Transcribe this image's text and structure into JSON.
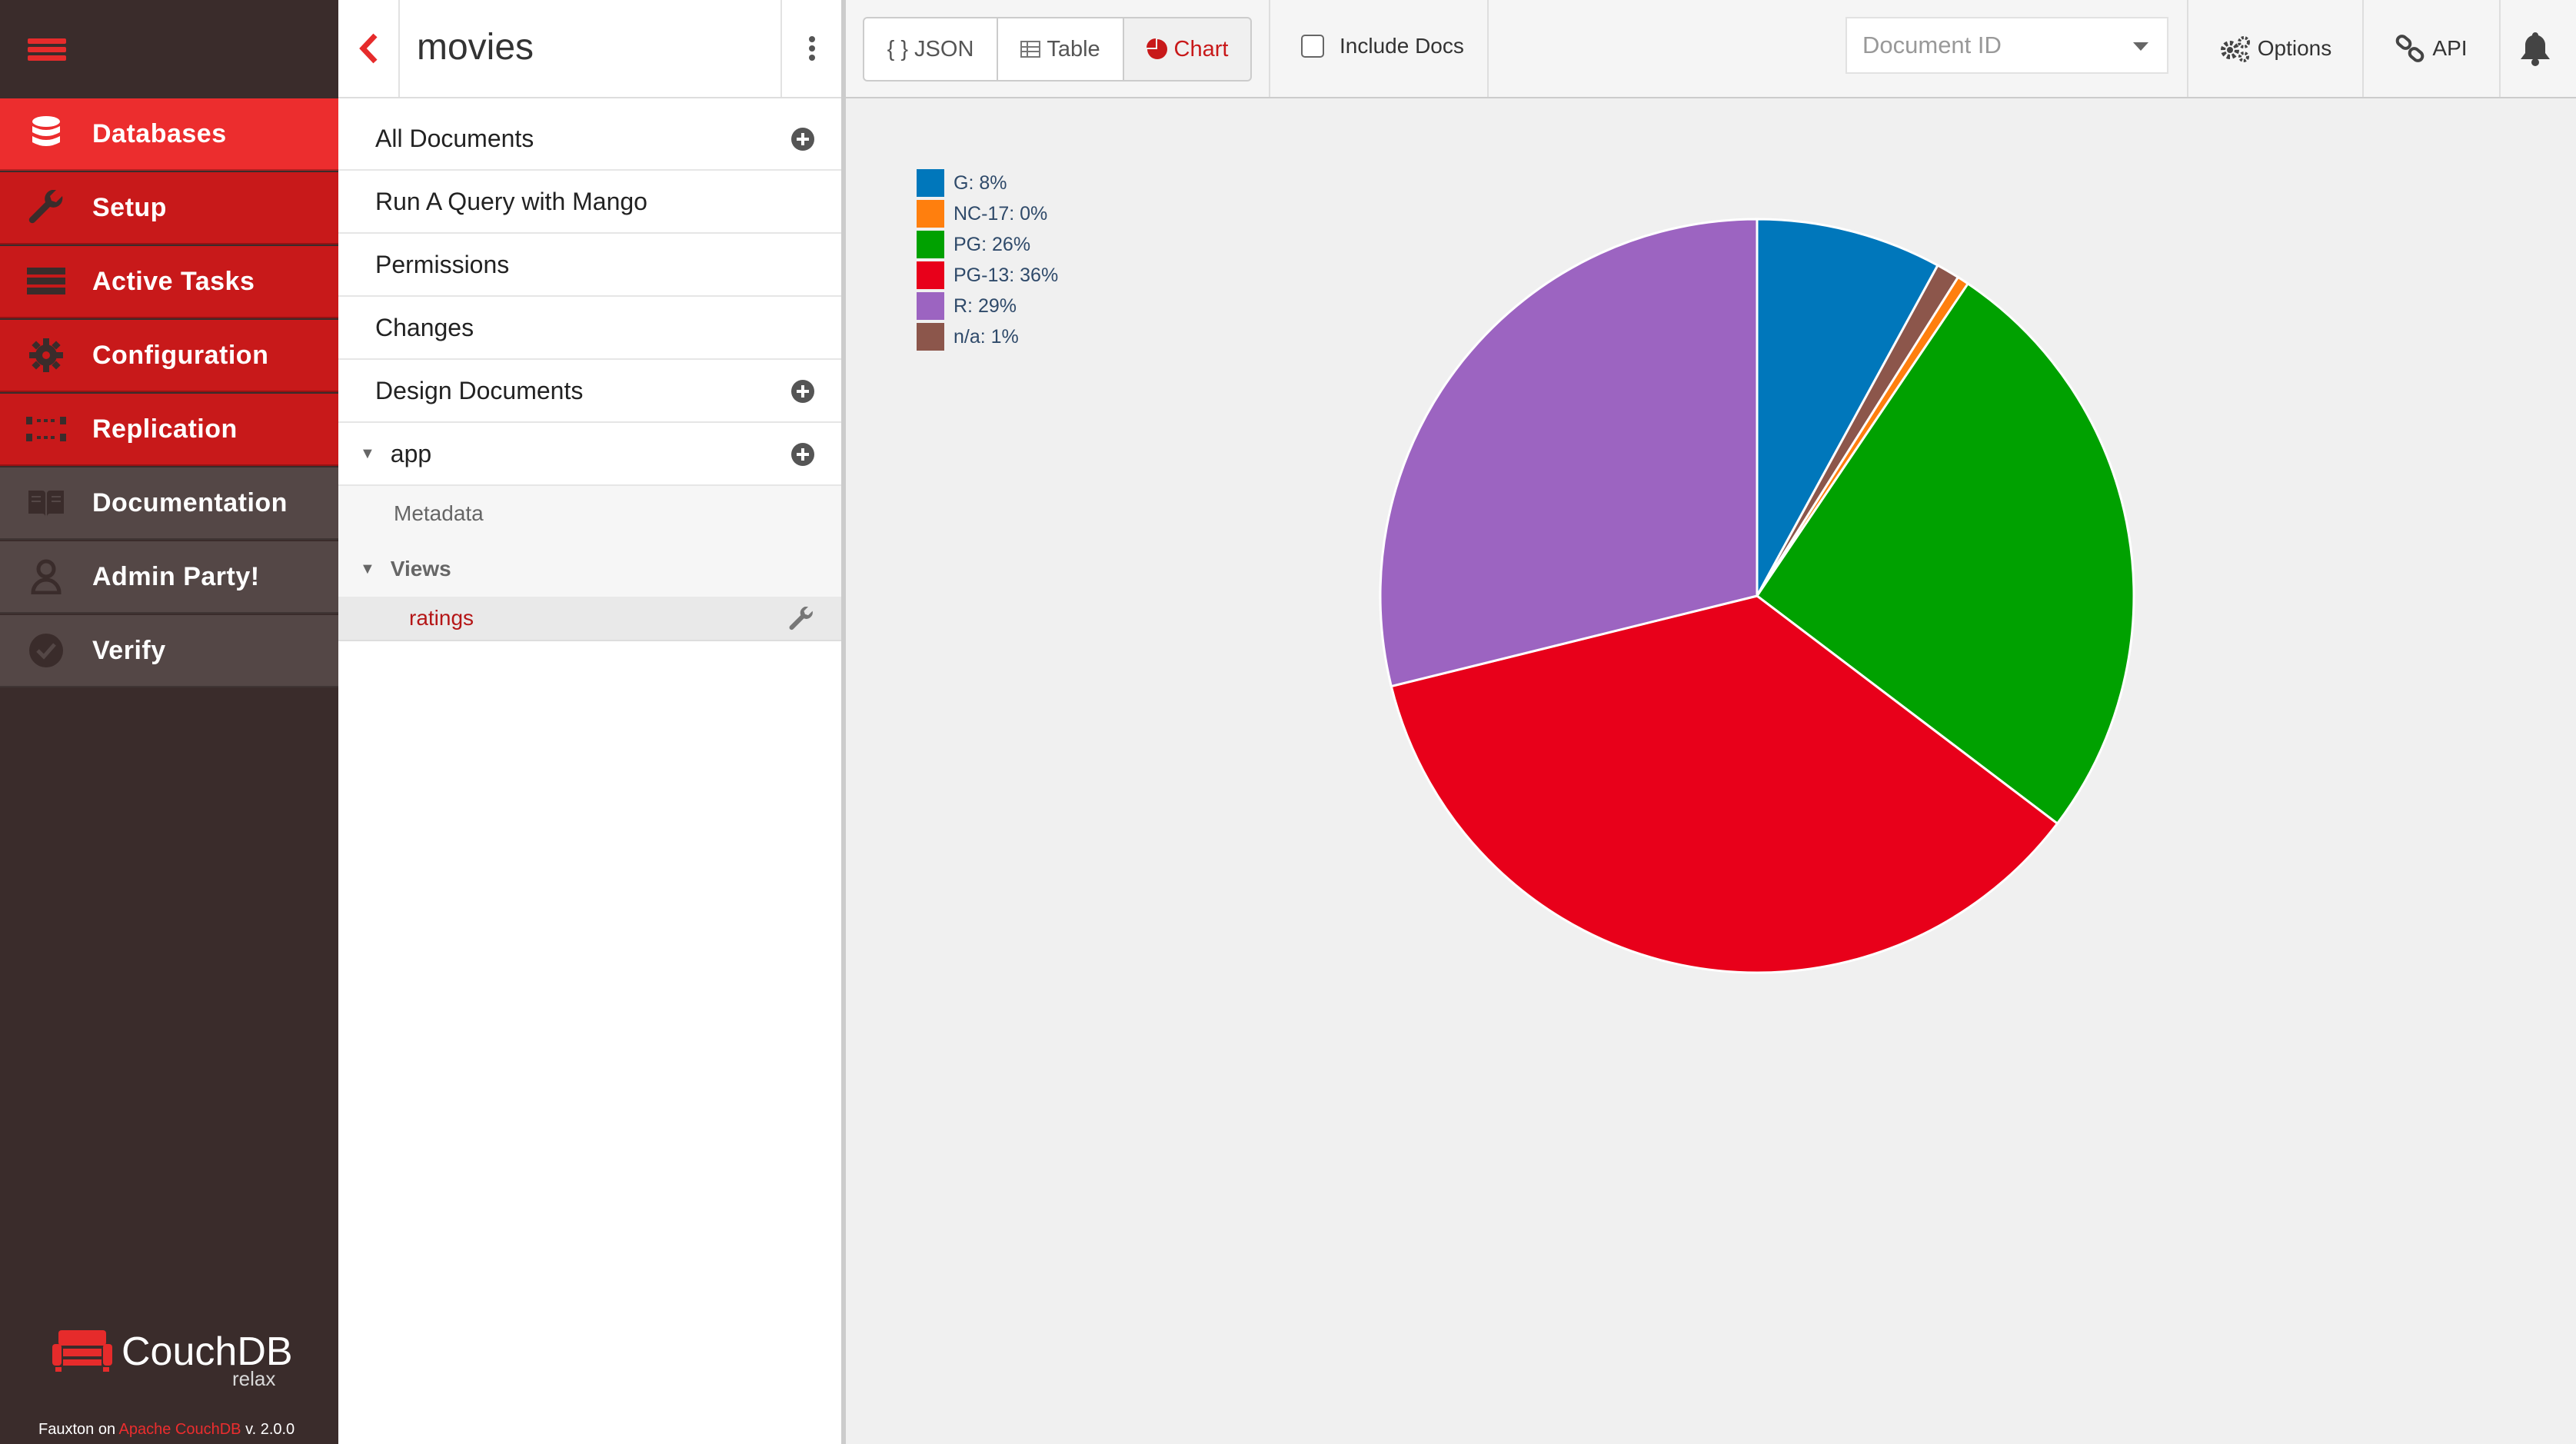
{
  "nav": {
    "items": [
      {
        "label": "Databases",
        "icon": "database-icon",
        "state": "active"
      },
      {
        "label": "Setup",
        "icon": "wrench-icon",
        "state": "red"
      },
      {
        "label": "Active Tasks",
        "icon": "tasks-icon",
        "state": "red"
      },
      {
        "label": "Configuration",
        "icon": "gear-icon",
        "state": "red"
      },
      {
        "label": "Replication",
        "icon": "replication-icon",
        "state": "red"
      },
      {
        "label": "Documentation",
        "icon": "book-icon",
        "state": "grey"
      },
      {
        "label": "Admin Party!",
        "icon": "user-icon",
        "state": "grey"
      },
      {
        "label": "Verify",
        "icon": "check-circle-icon",
        "state": "grey"
      }
    ],
    "brand": {
      "name": "CouchDB",
      "tagline": "relax",
      "footer_prefix": "Fauxton on ",
      "footer_link": "Apache CouchDB",
      "footer_version": " v. 2.0.0"
    }
  },
  "sidebar": {
    "database": "movies",
    "items": [
      {
        "label": "All Documents",
        "has_add": true
      },
      {
        "label": "Run A Query with Mango",
        "has_add": false
      },
      {
        "label": "Permissions",
        "has_add": false
      },
      {
        "label": "Changes",
        "has_add": false
      },
      {
        "label": "Design Documents",
        "has_add": true
      }
    ],
    "design_doc": {
      "name": "app",
      "metadata_label": "Metadata",
      "views_label": "Views",
      "selected_view": "ratings"
    }
  },
  "toolbar": {
    "view_modes": [
      {
        "label": "JSON",
        "icon": "json-braces-icon",
        "active": false
      },
      {
        "label": "Table",
        "icon": "table-icon",
        "active": false
      },
      {
        "label": "Chart",
        "icon": "pie-chart-icon",
        "active": true
      }
    ],
    "include_docs_label": "Include Docs",
    "include_docs_checked": false,
    "document_id_placeholder": "Document ID",
    "options_label": "Options",
    "api_label": "API"
  },
  "colors": {
    "accent": "#ec2d2e",
    "nav_bg": "#3a2c2b"
  },
  "chart_data": {
    "type": "pie",
    "categories": [
      "G",
      "NC-17",
      "PG",
      "PG-13",
      "R",
      "n/a"
    ],
    "values": [
      8,
      0.5,
      26,
      36,
      29,
      1
    ],
    "legend_labels": [
      "G: 8%",
      "NC-17: 0%",
      "PG: 26%",
      "PG-13: 36%",
      "R: 29%",
      "n/a: 1%"
    ],
    "colors": [
      "#0077bb",
      "#ff7f0e",
      "#00a100",
      "#e8001a",
      "#9c64c1",
      "#8c564b"
    ],
    "legend_position": "top-left"
  }
}
